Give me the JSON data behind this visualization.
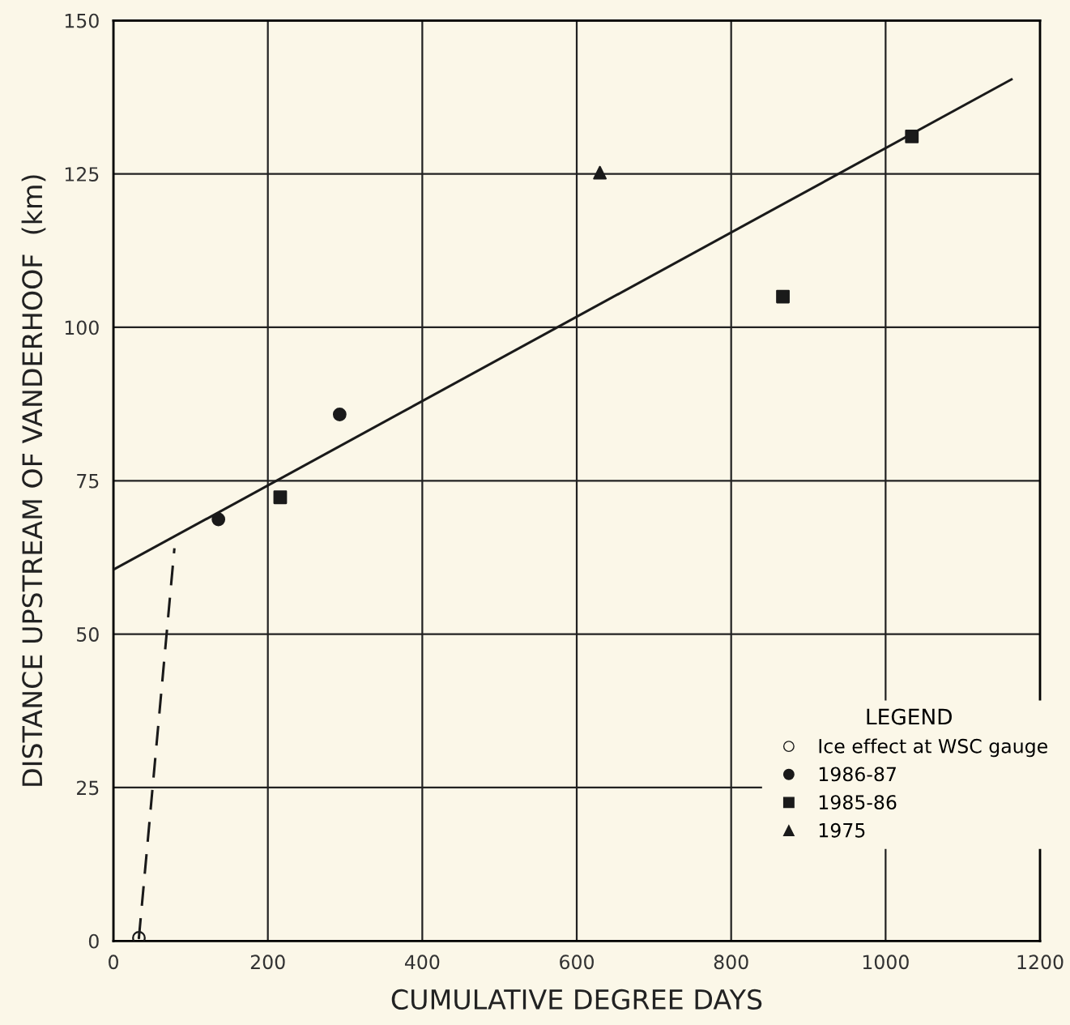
{
  "chart_data": {
    "type": "scatter",
    "xlabel": "CUMULATIVE DEGREE DAYS",
    "ylabel": "DISTANCE UPSTREAM OF VANDERHOOF  (km)",
    "xlim": [
      0,
      1200
    ],
    "xticks": [
      0,
      200,
      400,
      600,
      800,
      1000,
      1200
    ],
    "ylim": [
      0,
      150
    ],
    "yticks": [
      0,
      25,
      50,
      75,
      100,
      125,
      150
    ],
    "grid": true,
    "legend": "right",
    "legend_title": "LEGEND",
    "series": [
      {
        "type": "line",
        "color": "#1a1a1a",
        "line_style": "solid",
        "marker": "none",
        "x": [
          0,
          1163
        ],
        "values": [
          60.5,
          140.4
        ]
      },
      {
        "type": "line",
        "color": "#1a1a1a",
        "line_style": "dashed",
        "marker": "none",
        "x": [
          33,
          79
        ],
        "values": [
          0.5,
          64
        ]
      },
      {
        "name": "Ice effect at WSC gauge",
        "marker": "circle",
        "color": "#1a1a1a",
        "x": [
          33
        ],
        "values": [
          0.5
        ]
      },
      {
        "name": "1986-87",
        "marker": "circle",
        "color": "#1a1a1a",
        "x": [
          136,
          293
        ],
        "values": [
          68.7,
          85.8
        ]
      },
      {
        "name": "1985-86",
        "marker": "square",
        "color": "#1a1a1a",
        "x": [
          216,
          867,
          1034
        ],
        "values": [
          72.3,
          105,
          131.1
        ]
      },
      {
        "name": "1975",
        "marker": "triangle",
        "color": "#1a1a1a",
        "x": [
          630
        ],
        "values": [
          125.2
        ]
      }
    ]
  }
}
